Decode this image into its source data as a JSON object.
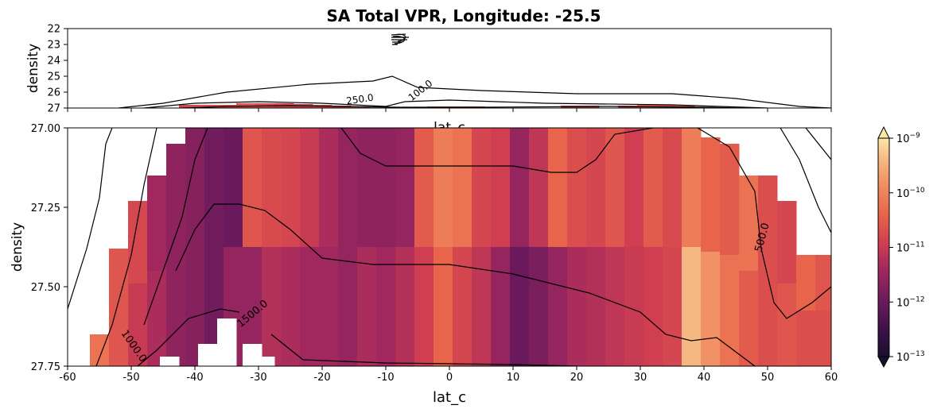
{
  "chart_data": [
    {
      "type": "heatmap",
      "panel": "top",
      "title": "SA Total VPR, Longitude: -25.5",
      "xlabel": "lat_c",
      "ylabel": "density",
      "xlim": [
        -60,
        60
      ],
      "ylim": [
        27,
        22
      ],
      "y_ticks": [
        "22",
        "23",
        "24",
        "25",
        "26",
        "27"
      ],
      "x_tick_labels_shown": false,
      "contour_labels": [
        "250.0",
        "100.0"
      ],
      "contours": [
        {
          "level": "outer",
          "points": [
            [
              -52,
              27.0
            ],
            [
              -45,
              26.7
            ],
            [
              -35,
              26.0
            ],
            [
              -22,
              25.5
            ],
            [
              -12,
              25.3
            ],
            [
              -9,
              25.0
            ],
            [
              -5,
              25.7
            ],
            [
              5,
              25.9
            ],
            [
              20,
              26.1
            ],
            [
              35,
              26.1
            ],
            [
              45,
              26.4
            ],
            [
              55,
              26.9
            ],
            [
              60,
              27.0
            ]
          ]
        },
        {
          "level": "mid",
          "points": [
            [
              -48,
              27.0
            ],
            [
              -40,
              26.7
            ],
            [
              -30,
              26.6
            ],
            [
              -20,
              26.7
            ],
            [
              -15,
              26.8
            ],
            [
              -10,
              26.9
            ],
            [
              -7,
              26.6
            ],
            [
              0,
              26.5
            ],
            [
              15,
              26.7
            ],
            [
              35,
              26.8
            ],
            [
              50,
              27.0
            ]
          ]
        },
        {
          "level": "inner",
          "points": [
            [
              -42,
              27.0
            ],
            [
              -35,
              26.9
            ],
            [
              -25,
              26.85
            ],
            [
              -18,
              26.9
            ],
            [
              -8,
              26.95
            ],
            [
              5,
              26.95
            ],
            [
              25,
              26.9
            ],
            [
              40,
              26.95
            ],
            [
              46,
              27.0
            ]
          ]
        }
      ],
      "cells": [
        {
          "lat": -41,
          "depth": 26.8,
          "value": 1.5e-11
        },
        {
          "lat": -38,
          "depth": 26.8,
          "value": 2e-11
        },
        {
          "lat": -35,
          "depth": 26.8,
          "value": 3e-11
        },
        {
          "lat": -32,
          "depth": 26.7,
          "value": 2.5e-11
        },
        {
          "lat": -29,
          "depth": 26.7,
          "value": 2e-11
        },
        {
          "lat": -26,
          "depth": 26.7,
          "value": 1.5e-11
        },
        {
          "lat": -23,
          "depth": 26.75,
          "value": 1.2e-11
        },
        {
          "lat": -20,
          "depth": 26.8,
          "value": 2e-11
        },
        {
          "lat": -17,
          "depth": 26.85,
          "value": 1.5e-11
        },
        {
          "lat": -14,
          "depth": 26.9,
          "value": 2.5e-11
        },
        {
          "lat": -2,
          "depth": 26.9,
          "value": 4e-11
        },
        {
          "lat": 1,
          "depth": 26.9,
          "value": 5e-11
        },
        {
          "lat": 4,
          "depth": 26.9,
          "value": 3e-11
        },
        {
          "lat": 19,
          "depth": 26.85,
          "value": 1.5e-11
        },
        {
          "lat": 22,
          "depth": 26.85,
          "value": 1.5e-11
        },
        {
          "lat": 28,
          "depth": 26.85,
          "value": 2e-11
        },
        {
          "lat": 31,
          "depth": 26.8,
          "value": 3e-11
        },
        {
          "lat": 34,
          "depth": 26.8,
          "value": 2e-11
        },
        {
          "lat": 37,
          "depth": 26.85,
          "value": 2.5e-11
        }
      ]
    },
    {
      "type": "heatmap",
      "panel": "bottom",
      "xlabel": "lat_c",
      "ylabel": "density",
      "xlim": [
        -60,
        60
      ],
      "ylim": [
        27.75,
        27.0
      ],
      "x_ticks": [
        "-60",
        "-50",
        "-40",
        "-30",
        "-20",
        "-10",
        "0",
        "10",
        "20",
        "30",
        "40",
        "50",
        "60"
      ],
      "y_ticks": [
        "27.00",
        "27.25",
        "27.50",
        "27.75"
      ],
      "contour_labels": [
        "500.0",
        "1000.0",
        "1500.0"
      ],
      "colorbar": {
        "scale": "log",
        "range": [
          1e-13,
          1e-09
        ],
        "ticks": [
          {
            "mantissa": "10",
            "exp": "−9",
            "value": 1e-09
          },
          {
            "mantissa": "10",
            "exp": "−10",
            "value": 1e-10
          },
          {
            "mantissa": "10",
            "exp": "−11",
            "value": 1e-11
          },
          {
            "mantissa": "10",
            "exp": "−12",
            "value": 1e-12
          },
          {
            "mantissa": "10",
            "exp": "−13",
            "value": 1e-13
          }
        ],
        "colormap": "magma_r",
        "extend": "both"
      },
      "columns": [
        {
          "lat": -55,
          "top": 27.65,
          "v_upper": 6e-11,
          "v_lower": 6e-11
        },
        {
          "lat": -52,
          "top": 27.38,
          "v_upper": 2.5e-11,
          "v_lower": 2.5e-11
        },
        {
          "lat": -49,
          "top": 27.23,
          "v_upper": 1.6e-11,
          "v_lower": 1e-11
        },
        {
          "lat": -46,
          "top": 27.15,
          "v_upper": 4e-12,
          "v_lower": 5e-12
        },
        {
          "lat": -43,
          "top": 27.05,
          "v_upper": 2.5e-12,
          "v_lower": 2.5e-12
        },
        {
          "lat": -40,
          "top": 27.0,
          "v_upper": 2e-12,
          "v_lower": 2e-12
        },
        {
          "lat": -37,
          "top": 27.0,
          "v_upper": 1.2e-12,
          "v_lower": 1.2e-12
        },
        {
          "lat": -34,
          "top": 27.0,
          "v_upper": 1e-12,
          "v_lower": 3e-12
        },
        {
          "lat": -31,
          "top": 27.0,
          "v_upper": 2.5e-11,
          "v_lower": 3e-12
        },
        {
          "lat": -28,
          "top": 27.0,
          "v_upper": 1.8e-11,
          "v_lower": 6e-12
        },
        {
          "lat": -25,
          "top": 27.0,
          "v_upper": 1.5e-11,
          "v_lower": 5e-12
        },
        {
          "lat": -22,
          "top": 27.0,
          "v_upper": 1e-11,
          "v_lower": 4e-12
        },
        {
          "lat": -19,
          "top": 27.0,
          "v_upper": 5e-12,
          "v_lower": 4e-12
        },
        {
          "lat": -16,
          "top": 27.0,
          "v_upper": 3e-12,
          "v_lower": 3e-12
        },
        {
          "lat": -13,
          "top": 27.0,
          "v_upper": 2.5e-12,
          "v_lower": 5e-12
        },
        {
          "lat": -10,
          "top": 27.0,
          "v_upper": 2.5e-12,
          "v_lower": 4e-12
        },
        {
          "lat": -7,
          "top": 27.0,
          "v_upper": 3e-12,
          "v_lower": 6e-12
        },
        {
          "lat": -4,
          "top": 27.0,
          "v_upper": 3e-11,
          "v_lower": 1.2e-11
        },
        {
          "lat": -1,
          "top": 27.0,
          "v_upper": 8e-11,
          "v_lower": 4e-11
        },
        {
          "lat": 2,
          "top": 27.0,
          "v_upper": 6e-11,
          "v_lower": 1.5e-11
        },
        {
          "lat": 5,
          "top": 27.0,
          "v_upper": 1.5e-11,
          "v_lower": 8e-12
        },
        {
          "lat": 8,
          "top": 27.0,
          "v_upper": 1.2e-11,
          "v_lower": 3e-12
        },
        {
          "lat": 11,
          "top": 27.0,
          "v_upper": 3e-12,
          "v_lower": 1e-12
        },
        {
          "lat": 14,
          "top": 27.0,
          "v_upper": 8e-12,
          "v_lower": 1.5e-12
        },
        {
          "lat": 17,
          "top": 27.0,
          "v_upper": 4e-11,
          "v_lower": 3e-12
        },
        {
          "lat": 20,
          "top": 27.0,
          "v_upper": 2e-11,
          "v_lower": 5e-12
        },
        {
          "lat": 23,
          "top": 27.0,
          "v_upper": 1.5e-11,
          "v_lower": 6e-12
        },
        {
          "lat": 26,
          "top": 27.0,
          "v_upper": 2.5e-11,
          "v_lower": 8e-12
        },
        {
          "lat": 29,
          "top": 27.0,
          "v_upper": 1.2e-11,
          "v_lower": 1e-11
        },
        {
          "lat": 32,
          "top": 27.0,
          "v_upper": 3e-11,
          "v_lower": 1.2e-11
        },
        {
          "lat": 35,
          "top": 27.0,
          "v_upper": 1.8e-11,
          "v_lower": 1.5e-11
        },
        {
          "lat": 38,
          "top": 27.0,
          "v_upper": 8e-11,
          "v_lower": 4e-10
        },
        {
          "lat": 41,
          "top": 27.03,
          "v_upper": 4e-11,
          "v_lower": 1.5e-10
        },
        {
          "lat": 44,
          "top": 27.05,
          "v_upper": 3e-11,
          "v_lower": 6e-11
        },
        {
          "lat": 47,
          "top": 27.15,
          "v_upper": 6e-11,
          "v_lower": 3e-11
        },
        {
          "lat": 50,
          "top": 27.15,
          "v_upper": 2e-11,
          "v_lower": 2e-11
        },
        {
          "lat": 53,
          "top": 27.23,
          "v_upper": 1.5e-11,
          "v_lower": 2.5e-11
        },
        {
          "lat": 56,
          "top": 27.4,
          "v_upper": 4e-11,
          "v_lower": 2e-11
        },
        {
          "lat": 59,
          "top": 27.4,
          "v_upper": 2.5e-11,
          "v_lower": 2e-11
        }
      ],
      "contours": [
        {
          "level": "outer-left",
          "points": [
            [
              -60,
              27.57
            ],
            [
              -57,
              27.38
            ],
            [
              -55,
              27.22
            ],
            [
              -54,
              27.05
            ],
            [
              -53,
              27.0
            ]
          ]
        },
        {
          "level": "1000.0-outer",
          "points": [
            [
              -55.5,
              27.75
            ],
            [
              -53,
              27.62
            ],
            [
              -50,
              27.4
            ],
            [
              -48,
              27.18
            ],
            [
              -46,
              27.0
            ]
          ]
        },
        {
          "level": "1000.0-inner",
          "points": [
            [
              -48,
              27.62
            ],
            [
              -45,
              27.45
            ],
            [
              -42,
              27.28
            ],
            [
              -40,
              27.1
            ],
            [
              -38,
              27.0
            ]
          ]
        },
        {
          "level": "mid-a",
          "points": [
            [
              -43,
              27.45
            ],
            [
              -40,
              27.32
            ],
            [
              -37,
              27.24
            ],
            [
              -33,
              27.24
            ],
            [
              -29,
              27.26
            ],
            [
              -25,
              27.32
            ],
            [
              -20,
              27.41
            ],
            [
              -12,
              27.43
            ],
            [
              0,
              27.43
            ],
            [
              10,
              27.46
            ],
            [
              22,
              27.52
            ],
            [
              30,
              27.58
            ],
            [
              34,
              27.65
            ],
            [
              38,
              27.67
            ],
            [
              42,
              27.66
            ],
            [
              48,
              27.75
            ]
          ]
        },
        {
          "level": "1500.0",
          "points": [
            [
              -49,
              27.75
            ],
            [
              -46,
              27.7
            ],
            [
              -41,
              27.6
            ],
            [
              -36,
              27.57
            ],
            [
              -33,
              27.58
            ]
          ]
        },
        {
          "level": "1500.0-b",
          "points": [
            [
              -28,
              27.65
            ],
            [
              -23,
              27.73
            ],
            [
              -10,
              27.74
            ],
            [
              10,
              27.745
            ],
            [
              20,
              27.75
            ]
          ]
        },
        {
          "level": "upper",
          "points": [
            [
              -17,
              27.0
            ],
            [
              -14,
              27.08
            ],
            [
              -10,
              27.12
            ],
            [
              0,
              27.12
            ],
            [
              10,
              27.12
            ],
            [
              16,
              27.14
            ],
            [
              20,
              27.14
            ],
            [
              23,
              27.1
            ],
            [
              26,
              27.02
            ],
            [
              32,
              27.0
            ]
          ]
        },
        {
          "level": "500.0",
          "points": [
            [
              39,
              27.0
            ],
            [
              44,
              27.06
            ],
            [
              48,
              27.2
            ],
            [
              49,
              27.38
            ],
            [
              51,
              27.55
            ],
            [
              53,
              27.6
            ],
            [
              57,
              27.55
            ],
            [
              60,
              27.5
            ]
          ]
        },
        {
          "level": "outer-right",
          "points": [
            [
              52,
              27.0
            ],
            [
              55,
              27.1
            ],
            [
              58,
              27.25
            ],
            [
              60,
              27.33
            ]
          ]
        },
        {
          "level": "outer-right-2",
          "points": [
            [
              56,
              27.0
            ],
            [
              60,
              27.1
            ]
          ]
        }
      ]
    }
  ]
}
